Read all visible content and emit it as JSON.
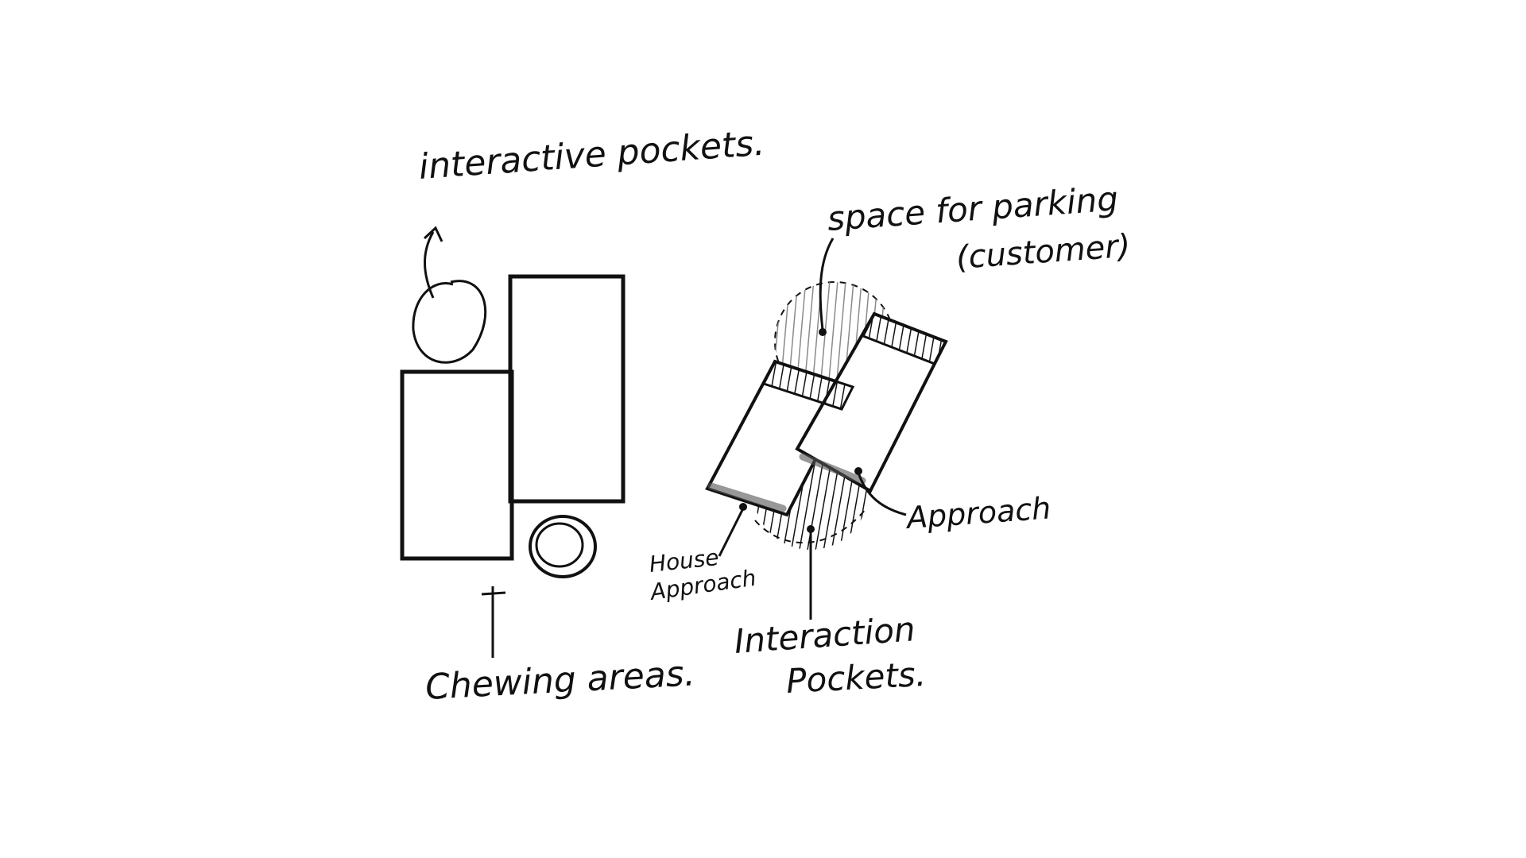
{
  "diagram": {
    "colors": {
      "background": "#ffffff",
      "ink": "#111111",
      "shade": "#8a8a8a"
    },
    "labels": {
      "interactive_pockets": "interactive pockets.",
      "space_for_parking_line1": "space for parking",
      "space_for_parking_line2": "(customer)",
      "approach": "Approach",
      "house_approach_line1": "House",
      "house_approach_line2": "Approach",
      "interaction_pockets_line1": "Interaction",
      "interaction_pockets_line2": "Pockets.",
      "chewing_areas": "Chewing areas."
    }
  }
}
